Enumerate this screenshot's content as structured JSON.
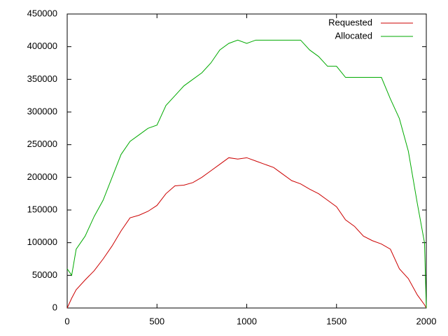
{
  "chart_data": {
    "type": "line",
    "x": [
      0,
      25,
      50,
      100,
      150,
      200,
      250,
      300,
      350,
      400,
      450,
      500,
      550,
      600,
      650,
      700,
      750,
      800,
      850,
      900,
      950,
      1000,
      1050,
      1100,
      1150,
      1200,
      1250,
      1300,
      1350,
      1400,
      1450,
      1500,
      1550,
      1600,
      1650,
      1700,
      1750,
      1800,
      1850,
      1900,
      1950,
      1990,
      2000
    ],
    "series": [
      {
        "name": "Requested",
        "color": "#cc0000",
        "values": [
          0,
          15000,
          28000,
          43000,
          57000,
          75000,
          95000,
          118000,
          138000,
          142000,
          148000,
          157000,
          175000,
          187000,
          188000,
          192000,
          200000,
          210000,
          220000,
          230000,
          228000,
          230000,
          225000,
          220000,
          215000,
          205000,
          195000,
          190000,
          182000,
          175000,
          165000,
          155000,
          135000,
          125000,
          110000,
          103000,
          98000,
          90000,
          60000,
          45000,
          20000,
          5000,
          0
        ]
      },
      {
        "name": "Allocated",
        "color": "#00aa00",
        "values": [
          60000,
          50000,
          90000,
          110000,
          140000,
          165000,
          200000,
          235000,
          255000,
          265000,
          275000,
          280000,
          310000,
          325000,
          340000,
          350000,
          360000,
          375000,
          395000,
          405000,
          410000,
          405000,
          410000,
          410000,
          410000,
          410000,
          410000,
          410000,
          395000,
          385000,
          370000,
          370000,
          353000,
          353000,
          353000,
          353000,
          353000,
          320000,
          290000,
          240000,
          160000,
          100000,
          0
        ]
      }
    ],
    "xlim": [
      0,
      2000
    ],
    "xticks": [
      0,
      500,
      1000,
      1500,
      2000
    ],
    "ylim": [
      0,
      450000
    ],
    "yticks": [
      0,
      50000,
      100000,
      150000,
      200000,
      250000,
      300000,
      350000,
      400000,
      450000
    ],
    "legend": "top-right"
  }
}
